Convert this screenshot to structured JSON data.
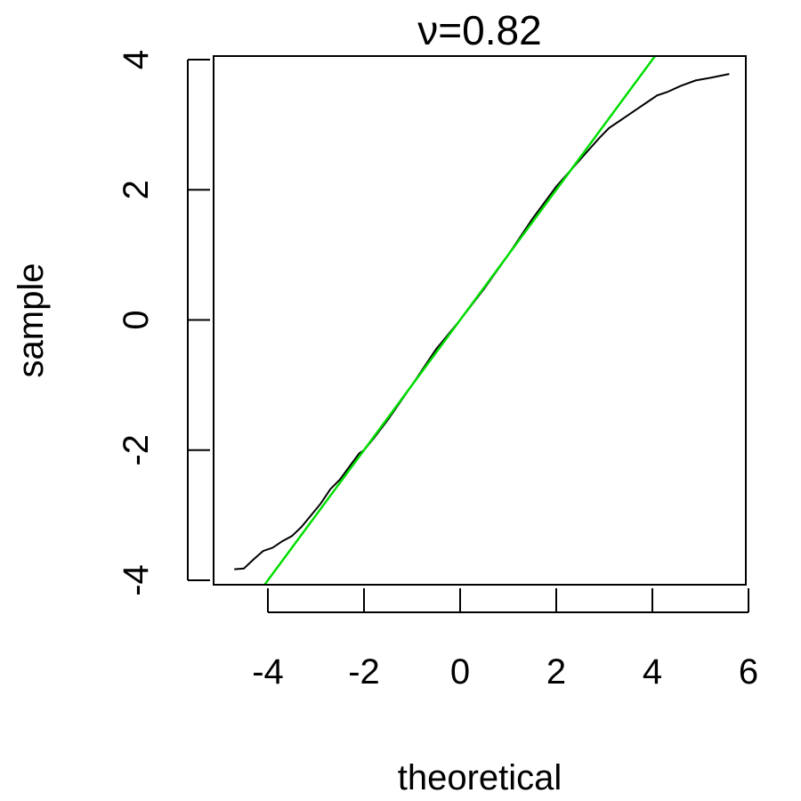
{
  "chart_data": {
    "type": "line",
    "title": "ν=0.82",
    "xlabel": "theoretical",
    "ylabel": "sample",
    "xlim": [
      -5.0,
      6.0
    ],
    "ylim": [
      -4.0,
      4.0
    ],
    "x_ticks": [
      "-4",
      "-2",
      "0",
      "2",
      "4",
      "6"
    ],
    "y_ticks": [
      "-4",
      "-2",
      "0",
      "2",
      "4"
    ],
    "grid": false,
    "legend": "none",
    "series": [
      {
        "color": "#000000",
        "x": [
          -4.7,
          -4.5,
          -4.3,
          -4.1,
          -3.9,
          -3.7,
          -3.5,
          -3.3,
          -3.1,
          -2.9,
          -2.7,
          -2.5,
          -2.3,
          -2.1,
          -2.0,
          -1.8,
          -1.5,
          -1.0,
          -0.5,
          0.0,
          0.5,
          1.0,
          1.5,
          2.0,
          2.3,
          2.6,
          2.9,
          3.1,
          3.3,
          3.5,
          3.7,
          3.9,
          4.1,
          4.3,
          4.6,
          4.9,
          5.2,
          5.6
        ],
        "y": [
          -3.83,
          -3.82,
          -3.68,
          -3.55,
          -3.5,
          -3.4,
          -3.32,
          -3.18,
          -3.0,
          -2.82,
          -2.6,
          -2.45,
          -2.25,
          -2.05,
          -2.0,
          -1.82,
          -1.53,
          -1.0,
          -0.45,
          0.0,
          0.48,
          1.0,
          1.55,
          2.05,
          2.3,
          2.55,
          2.8,
          2.95,
          3.05,
          3.15,
          3.25,
          3.35,
          3.45,
          3.5,
          3.6,
          3.68,
          3.72,
          3.78
        ]
      },
      {
        "color": "#00dd00",
        "x": [
          -4.1,
          4.1
        ],
        "y": [
          -4.1,
          4.1
        ]
      }
    ]
  }
}
